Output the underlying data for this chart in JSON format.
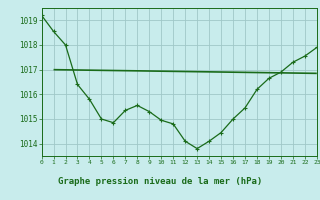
{
  "title": "Graphe pression niveau de la mer (hPa)",
  "bg_color": "#c8ecec",
  "footer_color": "#a0c8a0",
  "grid_color": "#a0c8c8",
  "line_color": "#1a6b1a",
  "xlim": [
    0,
    23
  ],
  "ylim": [
    1013.5,
    1019.5
  ],
  "yticks": [
    1014,
    1015,
    1016,
    1017,
    1018,
    1019
  ],
  "xtick_labels": [
    "0",
    "1",
    "2",
    "3",
    "4",
    "5",
    "6",
    "7",
    "8",
    "9",
    "10",
    "11",
    "12",
    "13",
    "14",
    "15",
    "16",
    "17",
    "18",
    "19",
    "20",
    "21",
    "22",
    "23"
  ],
  "xtick_pos": [
    0,
    1,
    2,
    3,
    4,
    5,
    6,
    7,
    8,
    9,
    10,
    11,
    12,
    13,
    14,
    15,
    16,
    17,
    18,
    19,
    20,
    21,
    22,
    23
  ],
  "flat_line": {
    "x": [
      1,
      23
    ],
    "y": [
      1017.0,
      1016.85
    ]
  },
  "main_line": {
    "x": [
      0,
      1,
      2,
      3,
      4,
      5,
      6,
      7,
      8,
      9,
      10,
      11,
      12,
      13,
      14,
      15,
      16,
      17,
      18,
      19,
      20,
      21,
      22,
      23
    ],
    "y": [
      1019.2,
      1018.55,
      1018.0,
      1016.4,
      1015.8,
      1015.0,
      1014.85,
      1015.35,
      1015.55,
      1015.3,
      1014.95,
      1014.8,
      1014.1,
      1013.8,
      1014.1,
      1014.45,
      1015.0,
      1015.45,
      1016.2,
      1016.65,
      1016.9,
      1017.3,
      1017.55,
      1017.9
    ]
  }
}
